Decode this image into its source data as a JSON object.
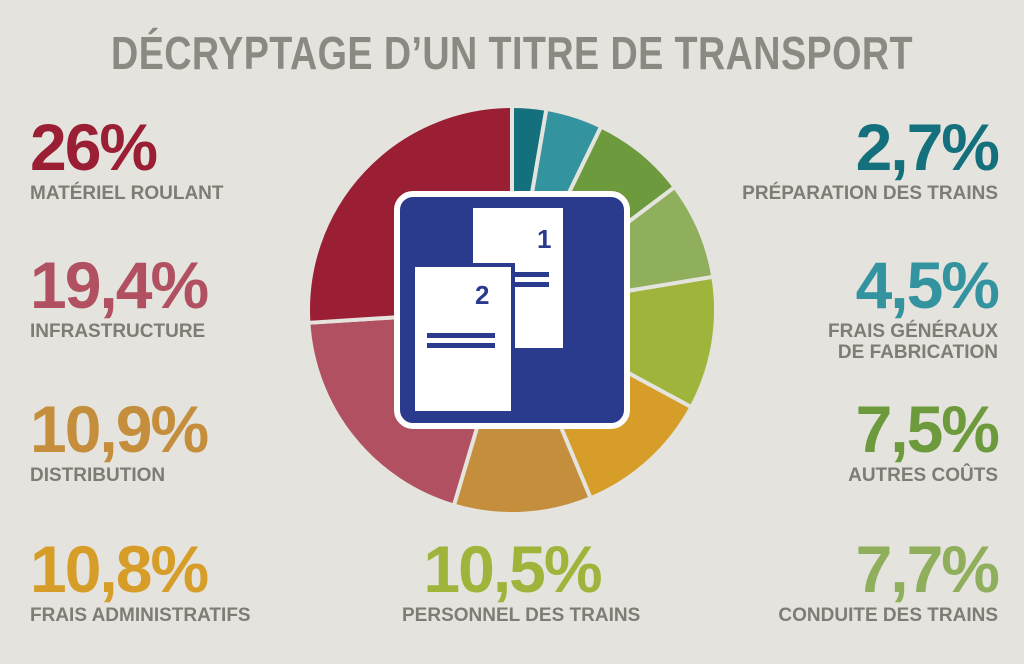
{
  "title": "DÉCRYPTAGE D’UN TITRE DE TRANSPORT",
  "icon": {
    "doc1_number": "1",
    "doc2_number": "2"
  },
  "colors": {
    "background": "#e4e3dd",
    "icon_frame": "#2a3a8c",
    "title": "#8c8882"
  },
  "chart_data": {
    "type": "pie",
    "title": "DÉCRYPTAGE D’UN TITRE DE TRANSPORT",
    "unit": "%",
    "slices": [
      {
        "label": "PRÉPARATION DES TRAINS",
        "display": "2,7%",
        "value": 2.7,
        "color": "#14707c"
      },
      {
        "label": "FRAIS GÉNÉRAUX\nDE FABRICATION",
        "display": "4,5%",
        "value": 4.5,
        "color": "#33939f"
      },
      {
        "label": "AUTRES COÛTS",
        "display": "7,5%",
        "value": 7.5,
        "color": "#6c9a3c"
      },
      {
        "label": "CONDUITE DES TRAINS",
        "display": "7,7%",
        "value": 7.7,
        "color": "#8faf5c"
      },
      {
        "label": "PERSONNEL DES TRAINS",
        "display": "10,5%",
        "value": 10.5,
        "color": "#9eb43a"
      },
      {
        "label": "FRAIS ADMINISTRATIFS",
        "display": "10,8%",
        "value": 10.8,
        "color": "#d69d28"
      },
      {
        "label": "DISTRIBUTION",
        "display": "10,9%",
        "value": 10.9,
        "color": "#c48e3c"
      },
      {
        "label": "INFRASTRUCTURE",
        "display": "19,4%",
        "value": 19.4,
        "color": "#b05060"
      },
      {
        "label": "MATÉRIEL ROULANT",
        "display": "26%",
        "value": 26,
        "color": "#9b1f34"
      }
    ]
  }
}
